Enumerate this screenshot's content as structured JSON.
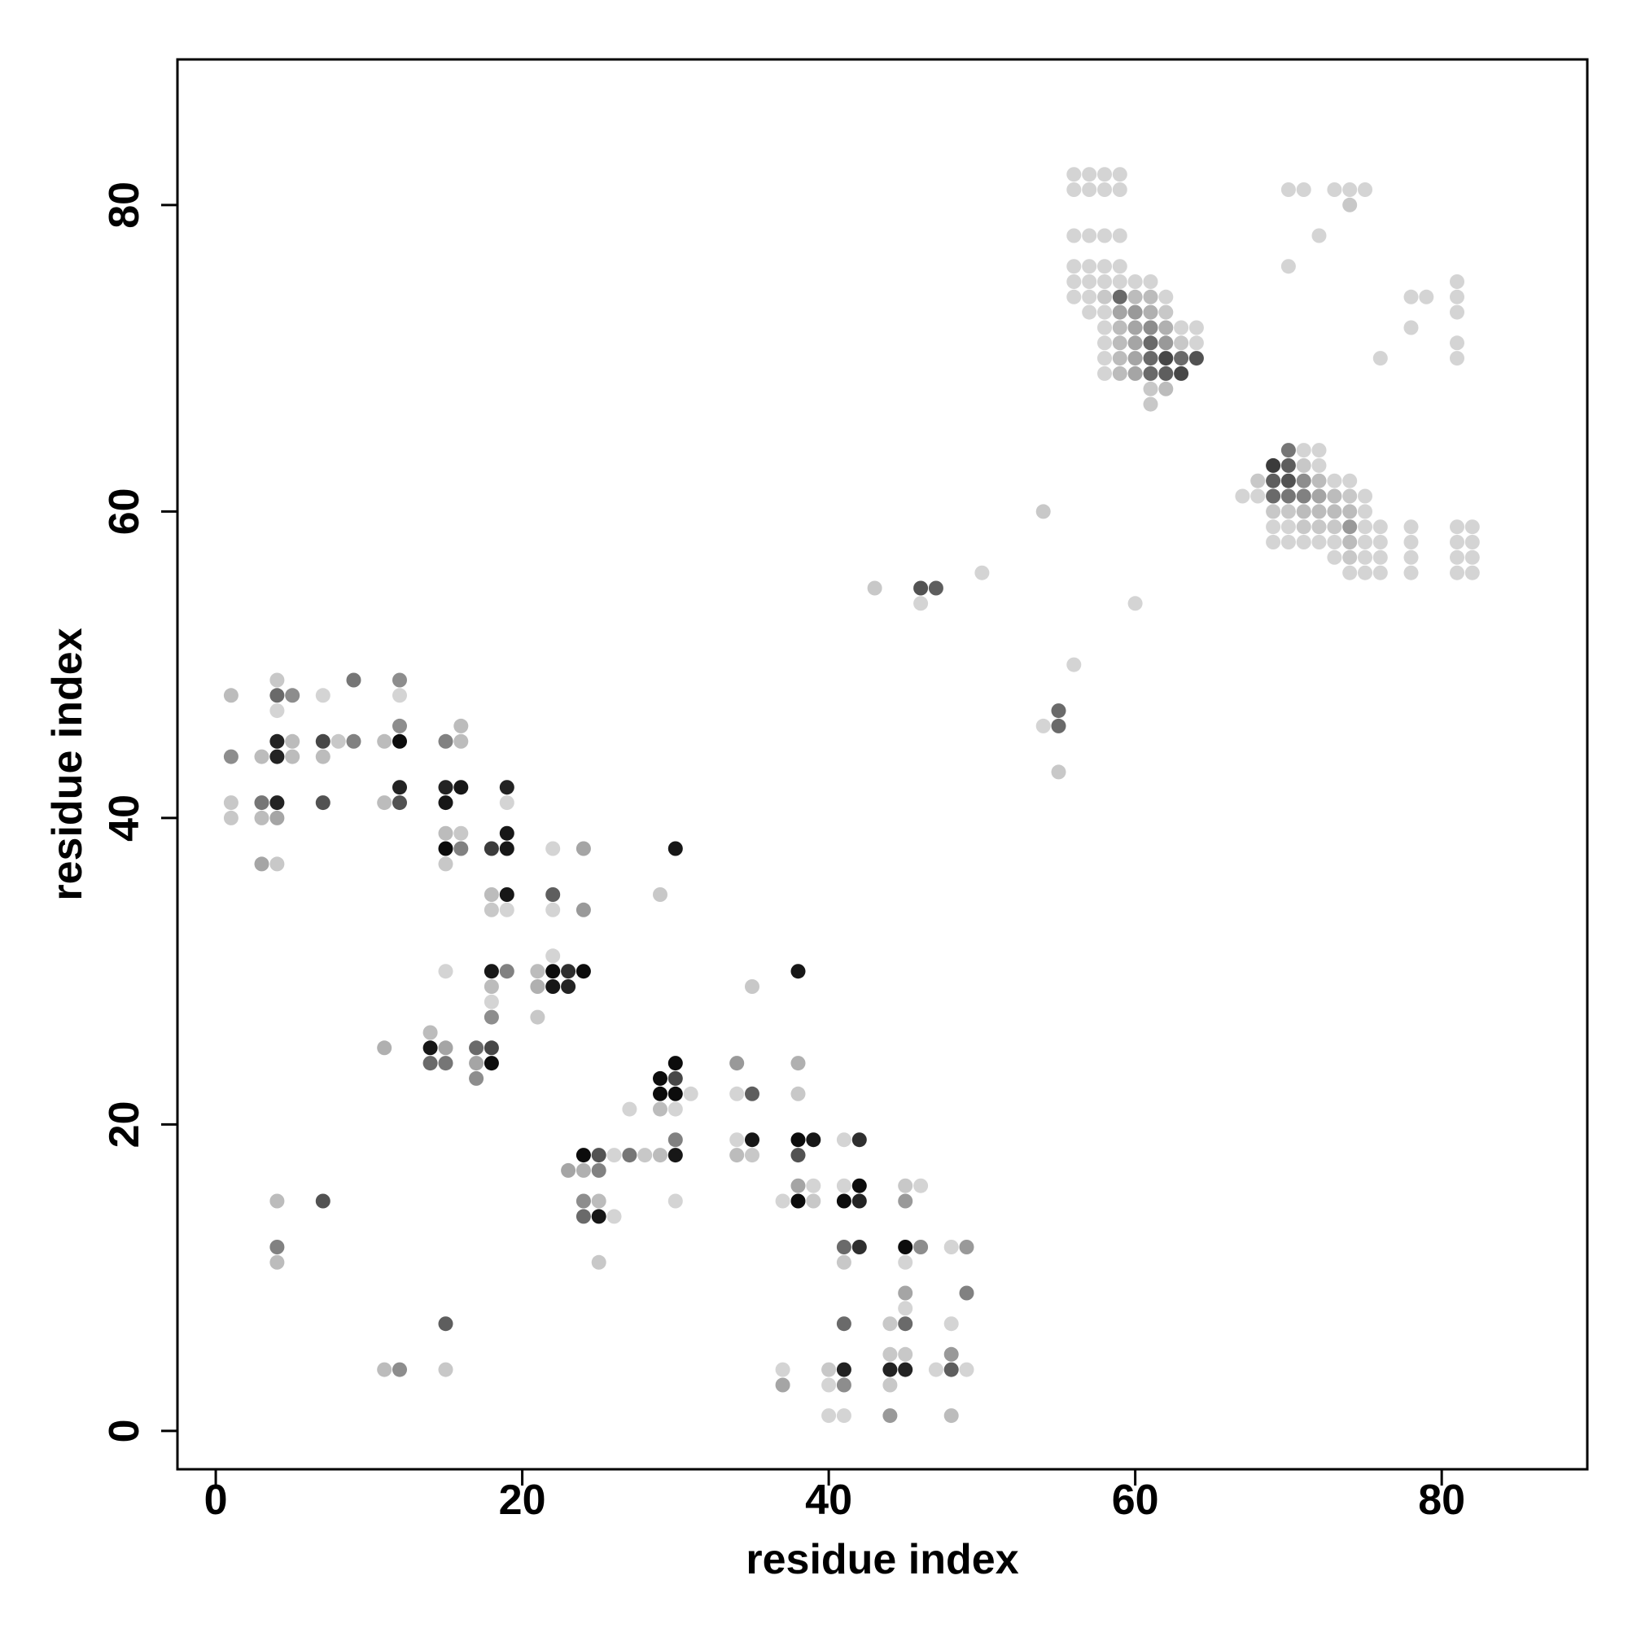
{
  "chart_data": {
    "type": "scatter",
    "title": "",
    "xlabel": "residue index",
    "ylabel": "residue index",
    "xlim": [
      -2.5,
      89.5
    ],
    "ylim": [
      -2.5,
      89.5
    ],
    "xticks": [
      0,
      20,
      40,
      60,
      80
    ],
    "yticks": [
      0,
      20,
      40,
      60,
      80
    ],
    "grid": false,
    "legend": "none",
    "shade_scale": "0 = lightest grey, 1 = black",
    "points": [
      [
        1,
        48,
        0.2
      ],
      [
        1,
        44,
        0.4
      ],
      [
        1,
        41,
        0.15
      ],
      [
        1,
        40,
        0.15
      ],
      [
        3,
        44,
        0.2
      ],
      [
        3,
        41,
        0.5
      ],
      [
        3,
        40,
        0.2
      ],
      [
        3,
        37,
        0.3
      ],
      [
        4,
        49,
        0.15
      ],
      [
        4,
        48,
        0.55
      ],
      [
        4,
        47,
        0.1
      ],
      [
        4,
        45,
        0.85
      ],
      [
        4,
        44,
        0.85
      ],
      [
        4,
        41,
        0.85
      ],
      [
        4,
        40,
        0.3
      ],
      [
        4,
        37,
        0.15
      ],
      [
        5,
        48,
        0.4
      ],
      [
        5,
        45,
        0.2
      ],
      [
        5,
        44,
        0.2
      ],
      [
        4,
        15,
        0.2
      ],
      [
        4,
        12,
        0.45
      ],
      [
        4,
        11,
        0.2
      ],
      [
        7,
        48,
        0.1
      ],
      [
        7,
        45,
        0.7
      ],
      [
        7,
        44,
        0.2
      ],
      [
        7,
        41,
        0.65
      ],
      [
        7,
        15,
        0.65
      ],
      [
        8,
        45,
        0.15
      ],
      [
        9,
        49,
        0.5
      ],
      [
        9,
        45,
        0.45
      ],
      [
        11,
        45,
        0.2
      ],
      [
        11,
        41,
        0.2
      ],
      [
        11,
        25,
        0.25
      ],
      [
        11,
        4,
        0.2
      ],
      [
        12,
        49,
        0.4
      ],
      [
        12,
        48,
        0.1
      ],
      [
        12,
        46,
        0.4
      ],
      [
        12,
        45,
        0.95
      ],
      [
        12,
        42,
        0.85
      ],
      [
        12,
        41,
        0.65
      ],
      [
        12,
        4,
        0.4
      ],
      [
        14,
        26,
        0.2
      ],
      [
        14,
        25,
        0.9
      ],
      [
        14,
        24,
        0.55
      ],
      [
        15,
        45,
        0.45
      ],
      [
        15,
        42,
        0.85
      ],
      [
        15,
        41,
        0.9
      ],
      [
        15,
        39,
        0.2
      ],
      [
        15,
        38,
        0.95
      ],
      [
        15,
        37,
        0.15
      ],
      [
        15,
        30,
        0.1
      ],
      [
        15,
        25,
        0.3
      ],
      [
        15,
        24,
        0.5
      ],
      [
        15,
        7,
        0.6
      ],
      [
        15,
        4,
        0.15
      ],
      [
        16,
        46,
        0.2
      ],
      [
        16,
        45,
        0.2
      ],
      [
        16,
        42,
        0.9
      ],
      [
        16,
        39,
        0.15
      ],
      [
        16,
        38,
        0.45
      ],
      [
        17,
        25,
        0.55
      ],
      [
        17,
        24,
        0.3
      ],
      [
        17,
        23,
        0.4
      ],
      [
        18,
        38,
        0.75
      ],
      [
        18,
        35,
        0.2
      ],
      [
        18,
        34,
        0.15
      ],
      [
        18,
        30,
        0.9
      ],
      [
        18,
        29,
        0.2
      ],
      [
        18,
        28,
        0.1
      ],
      [
        18,
        27,
        0.4
      ],
      [
        18,
        25,
        0.7
      ],
      [
        18,
        24,
        0.95
      ],
      [
        19,
        42,
        0.85
      ],
      [
        19,
        41,
        0.1
      ],
      [
        19,
        39,
        0.9
      ],
      [
        19,
        38,
        0.9
      ],
      [
        19,
        35,
        0.9
      ],
      [
        19,
        34,
        0.1
      ],
      [
        19,
        30,
        0.45
      ],
      [
        21,
        30,
        0.2
      ],
      [
        21,
        29,
        0.25
      ],
      [
        21,
        27,
        0.15
      ],
      [
        22,
        38,
        0.1
      ],
      [
        22,
        35,
        0.6
      ],
      [
        22,
        34,
        0.1
      ],
      [
        22,
        31,
        0.1
      ],
      [
        22,
        30,
        0.95
      ],
      [
        22,
        29,
        0.9
      ],
      [
        23,
        30,
        0.8
      ],
      [
        23,
        29,
        0.85
      ],
      [
        24,
        38,
        0.3
      ],
      [
        24,
        34,
        0.35
      ],
      [
        24,
        30,
        0.95
      ],
      [
        24,
        18,
        0.95
      ],
      [
        24,
        17,
        0.25
      ],
      [
        24,
        15,
        0.4
      ],
      [
        24,
        14,
        0.55
      ],
      [
        23,
        17,
        0.3
      ],
      [
        25,
        18,
        0.65
      ],
      [
        25,
        17,
        0.45
      ],
      [
        25,
        15,
        0.2
      ],
      [
        25,
        14,
        0.9
      ],
      [
        25,
        11,
        0.15
      ],
      [
        26,
        18,
        0.1
      ],
      [
        26,
        14,
        0.1
      ],
      [
        27,
        21,
        0.1
      ],
      [
        27,
        18,
        0.5
      ],
      [
        28,
        18,
        0.15
      ],
      [
        29,
        35,
        0.15
      ],
      [
        29,
        23,
        0.95
      ],
      [
        29,
        22,
        0.95
      ],
      [
        29,
        21,
        0.2
      ],
      [
        29,
        18,
        0.2
      ],
      [
        30,
        38,
        0.9
      ],
      [
        30,
        24,
        0.95
      ],
      [
        30,
        23,
        0.7
      ],
      [
        30,
        22,
        0.95
      ],
      [
        30,
        21,
        0.1
      ],
      [
        30,
        19,
        0.45
      ],
      [
        30,
        18,
        0.9
      ],
      [
        30,
        15,
        0.1
      ],
      [
        31,
        22,
        0.1
      ],
      [
        34,
        24,
        0.35
      ],
      [
        34,
        22,
        0.1
      ],
      [
        34,
        19,
        0.1
      ],
      [
        34,
        18,
        0.2
      ],
      [
        35,
        29,
        0.15
      ],
      [
        35,
        22,
        0.6
      ],
      [
        35,
        19,
        0.9
      ],
      [
        35,
        18,
        0.15
      ],
      [
        37,
        15,
        0.1
      ],
      [
        37,
        4,
        0.1
      ],
      [
        37,
        3,
        0.3
      ],
      [
        38,
        30,
        0.9
      ],
      [
        38,
        24,
        0.25
      ],
      [
        38,
        22,
        0.15
      ],
      [
        38,
        19,
        0.95
      ],
      [
        38,
        18,
        0.65
      ],
      [
        38,
        16,
        0.3
      ],
      [
        38,
        15,
        0.95
      ],
      [
        39,
        19,
        0.9
      ],
      [
        39,
        16,
        0.1
      ],
      [
        39,
        15,
        0.15
      ],
      [
        40,
        4,
        0.15
      ],
      [
        40,
        3,
        0.1
      ],
      [
        40,
        1,
        0.1
      ],
      [
        41,
        19,
        0.1
      ],
      [
        41,
        16,
        0.1
      ],
      [
        41,
        15,
        0.95
      ],
      [
        41,
        12,
        0.55
      ],
      [
        41,
        11,
        0.15
      ],
      [
        41,
        7,
        0.55
      ],
      [
        41,
        4,
        0.85
      ],
      [
        41,
        3,
        0.4
      ],
      [
        41,
        1,
        0.1
      ],
      [
        42,
        19,
        0.8
      ],
      [
        42,
        16,
        0.95
      ],
      [
        42,
        15,
        0.85
      ],
      [
        42,
        12,
        0.8
      ],
      [
        44,
        7,
        0.15
      ],
      [
        44,
        5,
        0.15
      ],
      [
        44,
        4,
        0.85
      ],
      [
        44,
        3,
        0.15
      ],
      [
        44,
        1,
        0.35
      ],
      [
        45,
        16,
        0.15
      ],
      [
        45,
        15,
        0.35
      ],
      [
        45,
        12,
        0.95
      ],
      [
        45,
        11,
        0.1
      ],
      [
        45,
        9,
        0.3
      ],
      [
        45,
        8,
        0.1
      ],
      [
        45,
        7,
        0.55
      ],
      [
        45,
        5,
        0.15
      ],
      [
        45,
        4,
        0.85
      ],
      [
        46,
        16,
        0.1
      ],
      [
        46,
        12,
        0.4
      ],
      [
        47,
        4,
        0.1
      ],
      [
        48,
        12,
        0.1
      ],
      [
        48,
        7,
        0.1
      ],
      [
        48,
        5,
        0.35
      ],
      [
        48,
        4,
        0.6
      ],
      [
        48,
        1,
        0.2
      ],
      [
        49,
        12,
        0.35
      ],
      [
        49,
        9,
        0.45
      ],
      [
        49,
        4,
        0.1
      ],
      [
        43,
        55,
        0.15
      ],
      [
        46,
        55,
        0.65
      ],
      [
        46,
        54,
        0.1
      ],
      [
        47,
        55,
        0.6
      ],
      [
        50,
        56,
        0.1
      ],
      [
        54,
        60,
        0.15
      ],
      [
        54,
        46,
        0.1
      ],
      [
        55,
        47,
        0.55
      ],
      [
        55,
        46,
        0.55
      ],
      [
        55,
        43,
        0.15
      ],
      [
        56,
        50,
        0.1
      ],
      [
        60,
        54,
        0.1
      ],
      [
        56,
        82,
        0.1
      ],
      [
        57,
        82,
        0.1
      ],
      [
        58,
        82,
        0.1
      ],
      [
        59,
        82,
        0.1
      ],
      [
        56,
        81,
        0.1
      ],
      [
        57,
        81,
        0.1
      ],
      [
        58,
        81,
        0.1
      ],
      [
        59,
        81,
        0.1
      ],
      [
        56,
        78,
        0.1
      ],
      [
        57,
        78,
        0.1
      ],
      [
        58,
        78,
        0.1
      ],
      [
        59,
        78,
        0.1
      ],
      [
        56,
        76,
        0.1
      ],
      [
        57,
        76,
        0.1
      ],
      [
        58,
        76,
        0.1
      ],
      [
        59,
        76,
        0.1
      ],
      [
        56,
        75,
        0.1
      ],
      [
        57,
        75,
        0.1
      ],
      [
        58,
        75,
        0.1
      ],
      [
        59,
        75,
        0.1
      ],
      [
        60,
        75,
        0.1
      ],
      [
        61,
        75,
        0.1
      ],
      [
        56,
        74,
        0.1
      ],
      [
        57,
        74,
        0.1
      ],
      [
        58,
        74,
        0.15
      ],
      [
        59,
        74,
        0.55
      ],
      [
        60,
        74,
        0.2
      ],
      [
        61,
        74,
        0.2
      ],
      [
        62,
        74,
        0.1
      ],
      [
        57,
        73,
        0.1
      ],
      [
        58,
        73,
        0.1
      ],
      [
        59,
        73,
        0.3
      ],
      [
        60,
        73,
        0.35
      ],
      [
        61,
        73,
        0.25
      ],
      [
        62,
        73,
        0.15
      ],
      [
        58,
        72,
        0.1
      ],
      [
        59,
        72,
        0.2
      ],
      [
        60,
        72,
        0.3
      ],
      [
        61,
        72,
        0.4
      ],
      [
        62,
        72,
        0.25
      ],
      [
        63,
        72,
        0.1
      ],
      [
        64,
        72,
        0.1
      ],
      [
        58,
        71,
        0.1
      ],
      [
        59,
        71,
        0.2
      ],
      [
        60,
        71,
        0.3
      ],
      [
        61,
        71,
        0.55
      ],
      [
        62,
        71,
        0.35
      ],
      [
        63,
        71,
        0.15
      ],
      [
        64,
        71,
        0.1
      ],
      [
        58,
        70,
        0.1
      ],
      [
        59,
        70,
        0.2
      ],
      [
        60,
        70,
        0.3
      ],
      [
        61,
        70,
        0.55
      ],
      [
        62,
        70,
        0.7
      ],
      [
        63,
        70,
        0.55
      ],
      [
        64,
        70,
        0.65
      ],
      [
        58,
        69,
        0.1
      ],
      [
        59,
        69,
        0.2
      ],
      [
        60,
        69,
        0.3
      ],
      [
        61,
        69,
        0.55
      ],
      [
        62,
        69,
        0.6
      ],
      [
        63,
        69,
        0.7
      ],
      [
        61,
        68,
        0.15
      ],
      [
        62,
        68,
        0.2
      ],
      [
        61,
        67,
        0.15
      ],
      [
        70,
        81,
        0.1
      ],
      [
        71,
        81,
        0.1
      ],
      [
        73,
        81,
        0.1
      ],
      [
        74,
        81,
        0.1
      ],
      [
        75,
        81,
        0.1
      ],
      [
        74,
        80,
        0.15
      ],
      [
        72,
        78,
        0.1
      ],
      [
        70,
        76,
        0.1
      ],
      [
        78,
        74,
        0.1
      ],
      [
        79,
        74,
        0.1
      ],
      [
        81,
        75,
        0.1
      ],
      [
        81,
        74,
        0.1
      ],
      [
        81,
        73,
        0.1
      ],
      [
        78,
        72,
        0.1
      ],
      [
        81,
        71,
        0.1
      ],
      [
        76,
        70,
        0.1
      ],
      [
        81,
        70,
        0.1
      ],
      [
        70,
        64,
        0.5
      ],
      [
        71,
        64,
        0.1
      ],
      [
        72,
        64,
        0.1
      ],
      [
        69,
        63,
        0.75
      ],
      [
        70,
        63,
        0.6
      ],
      [
        71,
        63,
        0.15
      ],
      [
        72,
        63,
        0.1
      ],
      [
        68,
        62,
        0.15
      ],
      [
        69,
        62,
        0.6
      ],
      [
        70,
        62,
        0.65
      ],
      [
        71,
        62,
        0.4
      ],
      [
        72,
        62,
        0.2
      ],
      [
        73,
        62,
        0.1
      ],
      [
        74,
        62,
        0.1
      ],
      [
        67,
        61,
        0.1
      ],
      [
        68,
        61,
        0.1
      ],
      [
        69,
        61,
        0.55
      ],
      [
        70,
        61,
        0.5
      ],
      [
        71,
        61,
        0.45
      ],
      [
        72,
        61,
        0.3
      ],
      [
        73,
        61,
        0.2
      ],
      [
        74,
        61,
        0.15
      ],
      [
        75,
        61,
        0.1
      ],
      [
        69,
        60,
        0.15
      ],
      [
        70,
        60,
        0.15
      ],
      [
        71,
        60,
        0.2
      ],
      [
        72,
        60,
        0.2
      ],
      [
        73,
        60,
        0.2
      ],
      [
        74,
        60,
        0.2
      ],
      [
        75,
        60,
        0.1
      ],
      [
        69,
        59,
        0.1
      ],
      [
        70,
        59,
        0.1
      ],
      [
        71,
        59,
        0.15
      ],
      [
        72,
        59,
        0.15
      ],
      [
        73,
        59,
        0.15
      ],
      [
        74,
        59,
        0.35
      ],
      [
        75,
        59,
        0.1
      ],
      [
        76,
        59,
        0.1
      ],
      [
        78,
        59,
        0.1
      ],
      [
        81,
        59,
        0.1
      ],
      [
        82,
        59,
        0.1
      ],
      [
        69,
        58,
        0.1
      ],
      [
        70,
        58,
        0.1
      ],
      [
        71,
        58,
        0.1
      ],
      [
        72,
        58,
        0.1
      ],
      [
        73,
        58,
        0.1
      ],
      [
        74,
        58,
        0.2
      ],
      [
        75,
        58,
        0.1
      ],
      [
        76,
        58,
        0.1
      ],
      [
        78,
        58,
        0.1
      ],
      [
        81,
        58,
        0.1
      ],
      [
        82,
        58,
        0.1
      ],
      [
        73,
        57,
        0.1
      ],
      [
        74,
        57,
        0.15
      ],
      [
        75,
        57,
        0.1
      ],
      [
        76,
        57,
        0.1
      ],
      [
        78,
        57,
        0.1
      ],
      [
        81,
        57,
        0.1
      ],
      [
        82,
        57,
        0.1
      ],
      [
        74,
        56,
        0.1
      ],
      [
        75,
        56,
        0.1
      ],
      [
        76,
        56,
        0.1
      ],
      [
        78,
        56,
        0.1
      ],
      [
        81,
        56,
        0.1
      ],
      [
        82,
        56,
        0.1
      ]
    ]
  }
}
